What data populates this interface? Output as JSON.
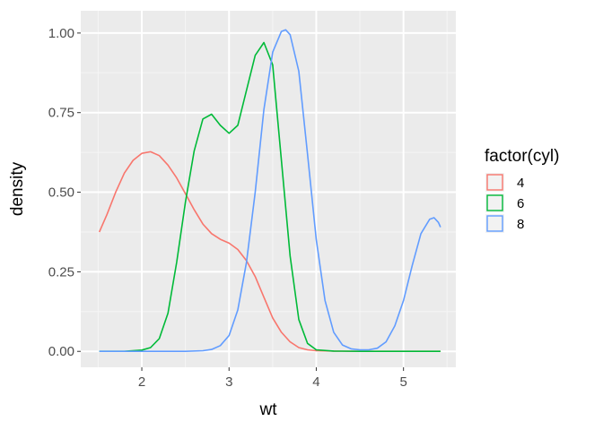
{
  "chart_data": {
    "type": "line",
    "title": "",
    "xlabel": "wt",
    "ylabel": "density",
    "xlim": [
      1.3,
      5.6
    ],
    "ylim": [
      -0.05,
      1.07
    ],
    "x_ticks": [
      2,
      3,
      4,
      5
    ],
    "x_tick_labels": [
      "2",
      "3",
      "4",
      "5"
    ],
    "y_ticks": [
      0,
      0.25,
      0.5,
      0.75,
      1.0
    ],
    "y_tick_labels": [
      "0.00",
      "0.25",
      "0.50",
      "0.75",
      "1.00"
    ],
    "grid": true,
    "legend": {
      "title": "factor(cyl)",
      "position": "right"
    },
    "series": [
      {
        "name": "4",
        "color": "#F8766D",
        "x": [
          1.513,
          1.6,
          1.7,
          1.8,
          1.9,
          2.0,
          2.1,
          2.2,
          2.3,
          2.4,
          2.5,
          2.6,
          2.7,
          2.8,
          2.9,
          3.0,
          3.1,
          3.2,
          3.3,
          3.4,
          3.5,
          3.6,
          3.7,
          3.8,
          3.9,
          4.0,
          4.2,
          4.5,
          5.0,
          5.424
        ],
        "y": [
          0.375,
          0.43,
          0.5,
          0.56,
          0.6,
          0.622,
          0.627,
          0.615,
          0.585,
          0.545,
          0.495,
          0.445,
          0.4,
          0.37,
          0.352,
          0.34,
          0.32,
          0.285,
          0.235,
          0.17,
          0.105,
          0.06,
          0.03,
          0.012,
          0.005,
          0.002,
          0.001,
          0.0,
          0.0,
          0.0
        ]
      },
      {
        "name": "6",
        "color": "#00BA38",
        "x": [
          1.513,
          1.8,
          2.0,
          2.1,
          2.2,
          2.3,
          2.4,
          2.5,
          2.6,
          2.7,
          2.8,
          2.9,
          3.0,
          3.1,
          3.2,
          3.3,
          3.4,
          3.5,
          3.6,
          3.7,
          3.8,
          3.9,
          4.0,
          4.2,
          4.5,
          5.0,
          5.424
        ],
        "y": [
          0.0,
          0.0,
          0.004,
          0.012,
          0.04,
          0.12,
          0.28,
          0.47,
          0.63,
          0.73,
          0.745,
          0.71,
          0.685,
          0.71,
          0.82,
          0.93,
          0.97,
          0.9,
          0.6,
          0.3,
          0.1,
          0.025,
          0.005,
          0.001,
          0.0,
          0.0,
          0.0
        ]
      },
      {
        "name": "8",
        "color": "#619CFF",
        "x": [
          1.513,
          2.0,
          2.5,
          2.7,
          2.8,
          2.9,
          3.0,
          3.1,
          3.2,
          3.3,
          3.4,
          3.5,
          3.6,
          3.65,
          3.7,
          3.8,
          3.9,
          4.0,
          4.1,
          4.2,
          4.3,
          4.4,
          4.5,
          4.6,
          4.7,
          4.8,
          4.9,
          5.0,
          5.1,
          5.2,
          5.3,
          5.35,
          5.4,
          5.424
        ],
        "y": [
          0.0,
          0.0,
          0.0,
          0.002,
          0.006,
          0.018,
          0.05,
          0.13,
          0.28,
          0.5,
          0.76,
          0.94,
          1.005,
          1.01,
          0.995,
          0.88,
          0.62,
          0.35,
          0.16,
          0.06,
          0.02,
          0.008,
          0.005,
          0.005,
          0.01,
          0.03,
          0.08,
          0.16,
          0.27,
          0.37,
          0.415,
          0.42,
          0.405,
          0.39
        ]
      }
    ]
  }
}
